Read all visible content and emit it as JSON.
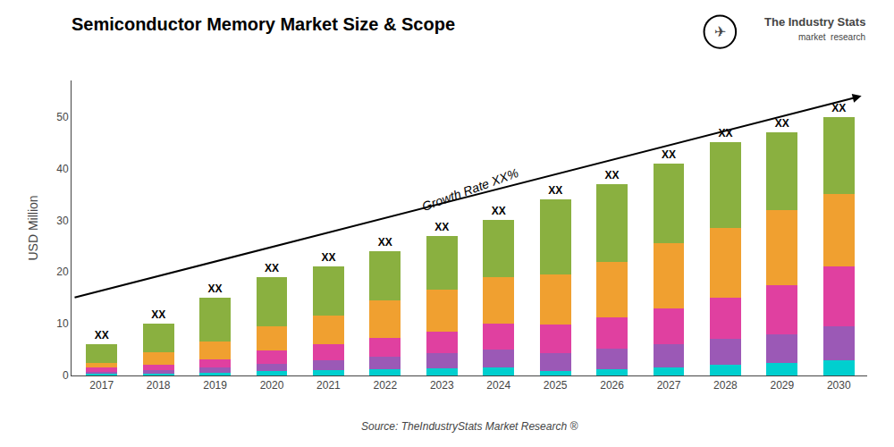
{
  "chart_data": {
    "type": "bar",
    "title": "Semiconductor Memory Market Size & Scope",
    "ylabel": "USD Million",
    "source": "Source: TheIndustryStats Market Research ®",
    "categories": [
      "2017",
      "2018",
      "2019",
      "2020",
      "2021",
      "2022",
      "2023",
      "2024",
      "2025",
      "2026",
      "2027",
      "2028",
      "2029",
      "2030"
    ],
    "series": [
      {
        "color": "#00cfcf",
        "values": [
          0.3,
          0.4,
          0.6,
          0.8,
          1.0,
          1.2,
          1.4,
          1.5,
          0.8,
          1.2,
          1.5,
          2.0,
          2.5,
          3.0
        ]
      },
      {
        "color": "#9b59b6",
        "values": [
          0.4,
          0.7,
          1.0,
          1.5,
          2.0,
          2.5,
          3.0,
          3.5,
          3.5,
          4.0,
          4.5,
          5.0,
          5.5,
          6.5
        ]
      },
      {
        "color": "#e040a0",
        "values": [
          0.8,
          1.0,
          1.5,
          2.5,
          3.0,
          3.5,
          4.0,
          5.0,
          5.5,
          6.0,
          7.0,
          8.0,
          9.5,
          11.5
        ]
      },
      {
        "color": "#f0a030",
        "values": [
          1.0,
          2.4,
          3.4,
          4.7,
          5.5,
          7.3,
          8.1,
          9.0,
          9.7,
          10.8,
          12.5,
          13.5,
          14.5,
          14.0
        ]
      },
      {
        "color": "#8ab040",
        "values": [
          3.5,
          5.5,
          8.5,
          9.5,
          9.5,
          9.5,
          10.5,
          11.0,
          14.5,
          15.0,
          15.5,
          16.5,
          15.0,
          15.0
        ]
      }
    ],
    "stacked": true,
    "bar_label": "XX",
    "annotations": [
      {
        "text": "Growth Rate XX%"
      }
    ],
    "logo": [
      "The Industry Stats",
      "market  research",
      "✈"
    ],
    "ylim": [
      0,
      57
    ],
    "yticks": [
      0,
      10,
      20,
      30,
      40,
      50
    ],
    "grid": false
  }
}
